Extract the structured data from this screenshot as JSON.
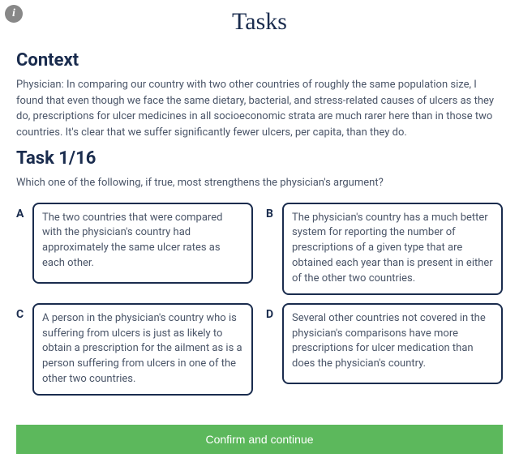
{
  "info_icon_glyph": "i",
  "page_title": "Tasks",
  "context": {
    "heading": "Context",
    "text": "Physician: In comparing our country with two other countries of roughly the same population size, I found that even though we face the same dietary, bacterial, and stress-related causes of ulcers as they do, prescriptions for ulcer medicines in all socioeconomic strata are much rarer here than in those two countries. It's clear that we suffer significantly fewer ulcers, per capita, than they do."
  },
  "task": {
    "heading": "Task 1/16",
    "question": "Which one of the following, if true, most strengthens the physician's argument?",
    "options": [
      {
        "letter": "A",
        "text": "The two countries that were compared with the physician's country had approximately the same ulcer rates as each other."
      },
      {
        "letter": "B",
        "text": "The physician's country has a much better system for reporting the number of prescriptions of a given type that are obtained each year than is present in either of the other two countries."
      },
      {
        "letter": "C",
        "text": "A person in the physician's country who is suffering from ulcers is just as likely to obtain a prescription for the ailment as is a person suffering from ulcers in one of the other two countries."
      },
      {
        "letter": "D",
        "text": "Several other countries not covered in the physician's comparisons have more prescriptions for ulcer medication than does the physician's country."
      }
    ]
  },
  "confirm_label": "Confirm and continue",
  "colors": {
    "text_primary": "#1a2c4e",
    "text_body": "#4a5568",
    "info_bg": "#888888",
    "confirm_bg": "#5cb85c",
    "confirm_text": "#ffffff",
    "border": "#1a2c4e"
  }
}
